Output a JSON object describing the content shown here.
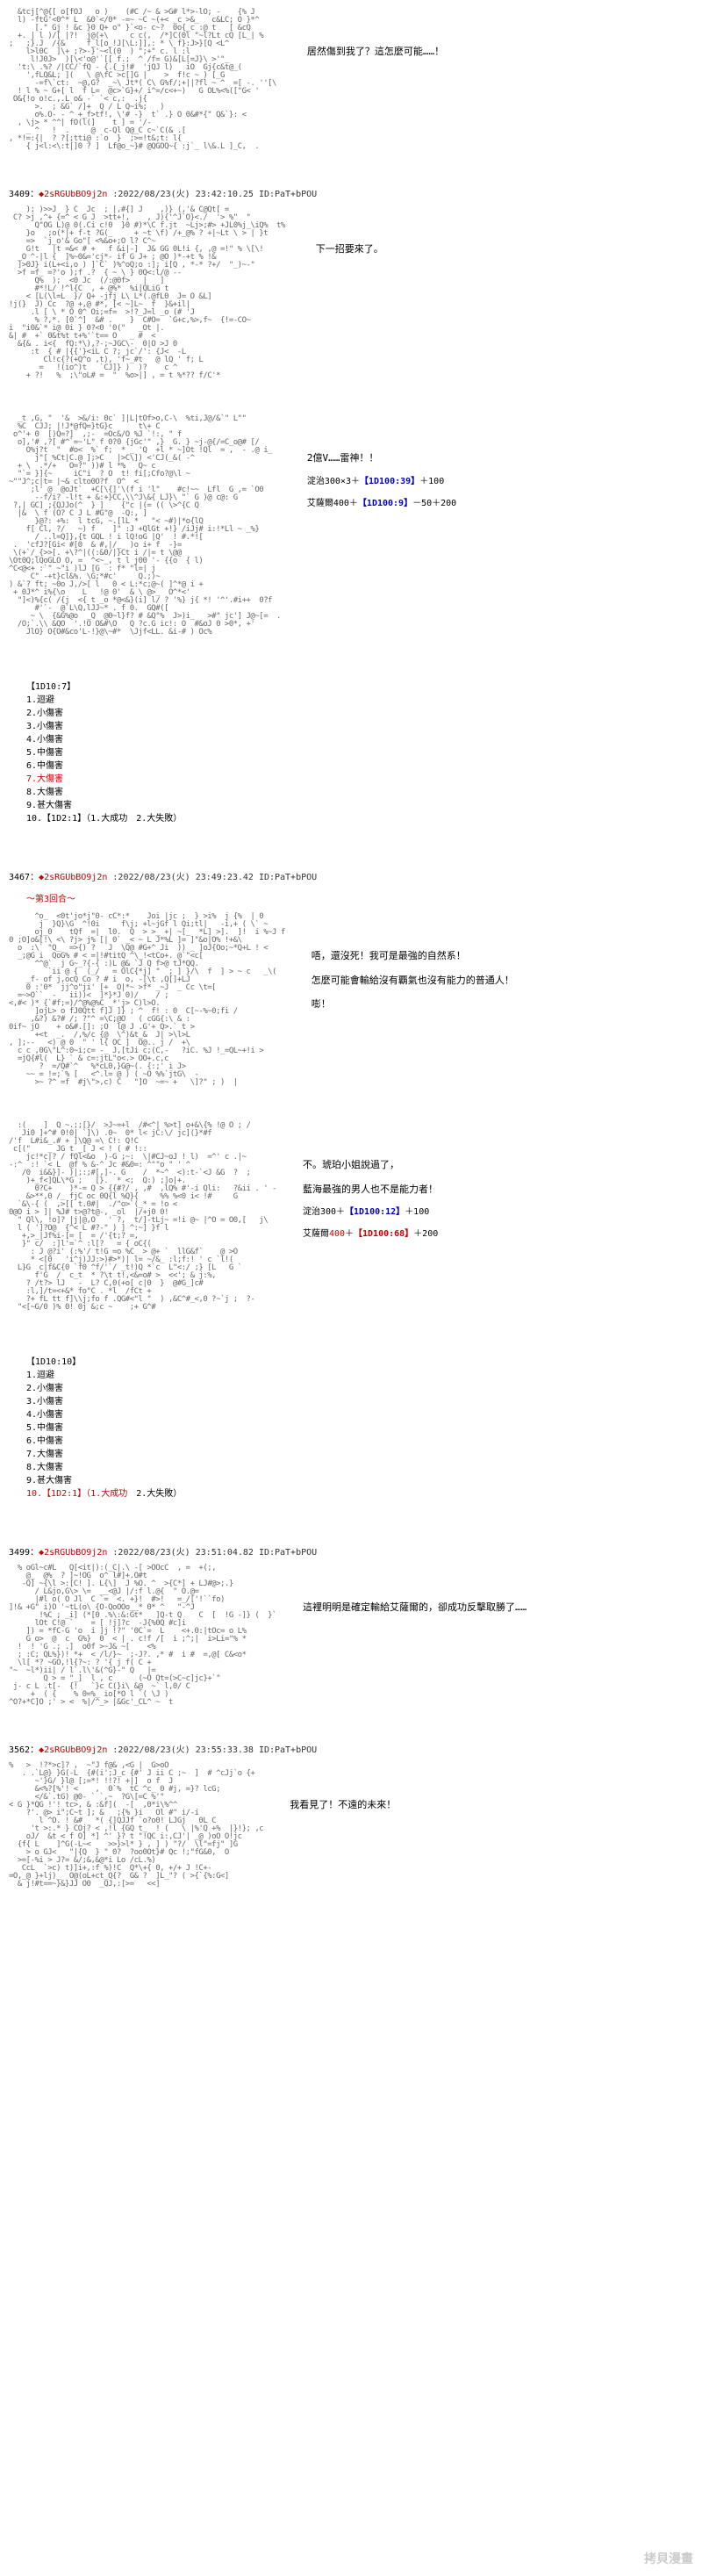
{
  "posts": [
    {
      "ascii_height": 18,
      "dialogue": [
        "居然傷到我了？這怎麼可能……！"
      ]
    },
    {
      "num": "3409",
      "tripcode": "◆2sRGUbBO9j2n",
      "timestamp": ":2022/08/23(火) 23:42:10.25 ID:PaT+bPOU",
      "ascii_height": 22,
      "dialogue": [
        "下一招要來了。"
      ]
    },
    {
      "ascii_height": 28,
      "dialogue": [
        "2億V……雷神！！"
      ],
      "dice_rolls": [
        {
          "prefix": "淀治300×3＋",
          "roll": "【1D100:39】",
          "suffix": "＋100",
          "roll_color": "#00c"
        },
        {
          "prefix": "艾薩爾400＋",
          "roll": "【1D100:9】",
          "suffix": "－50＋200",
          "roll_color": "#00c"
        }
      ]
    },
    {
      "dice_list": {
        "header": "【1D10:7】",
        "items": [
          "1.迴避",
          "2.小傷害",
          "3.小傷害",
          "4.小傷害",
          "5.中傷害",
          "6.中傷害"
        ],
        "red_item": "7.大傷害",
        "items_after": [
          "8.大傷害",
          "9.甚大傷害",
          "10.【1D2:1】（1.大成功　2.大失敗）"
        ]
      }
    },
    {
      "num": "3467",
      "tripcode": "◆2sRGUbBO9j2n",
      "timestamp": ":2022/08/23(火) 23:49:23.42 ID:PaT+bPOU",
      "round": "～第3回合～",
      "ascii_height": 22,
      "dialogue": [
        "唔，還沒死！我可是最強的自然系！",
        "怎麼可能會輸給沒有覇氣也沒有能力的普通人！",
        "嘭！"
      ]
    },
    {
      "ascii_height": 24,
      "dialogue": [
        "不。琥珀小姐說過了，",
        "藍海最強的男人也不是能力者！"
      ],
      "dice_rolls": [
        {
          "prefix": "淀治300＋",
          "roll": "【1D100:12】",
          "suffix": "＋100",
          "roll_color": "#00c"
        },
        {
          "prefix": "艾薩爾",
          "prefix_red": "400",
          "roll": "【1D100:68】",
          "suffix": "＋200",
          "roll_color": "#c00",
          "prefix_after": "＋"
        }
      ]
    },
    {
      "dice_list": {
        "header": "【1D10:10】",
        "items": [
          "1.迴避",
          "2.小傷害",
          "3.小傷害",
          "4.小傷害",
          "5.中傷害",
          "6.中傷害",
          "7.大傷害",
          "8.大傷害",
          "9.甚大傷害"
        ],
        "red_final": "10.【1D2:1】（1.大成功　2.大失敗）",
        "red_final_partial": {
          "pre": "10.【1D2:1】（1.",
          "red": "大成功",
          "post": "　2.大失敗）"
        }
      }
    },
    {
      "num": "3499",
      "tripcode": "◆2sRGUbBO9j2n",
      "timestamp": ":2022/08/23(火) 23:51:04.82 ID:PaT+bPOU",
      "ascii_height": 18,
      "dialogue": [
        "這裡明明是確定輸給艾薩爾的，卻成功反擊取勝了……"
      ]
    },
    {
      "num": "3562",
      "tripcode": "◆2sRGUbBO9j2n",
      "timestamp": ":2022/08/23(火) 23:55:33.38 ID:PaT+bPOU",
      "ascii_height": 16,
      "dialogue": [
        "我看見了！不遠的未來！"
      ]
    }
  ],
  "watermark": "拷貝漫畫"
}
